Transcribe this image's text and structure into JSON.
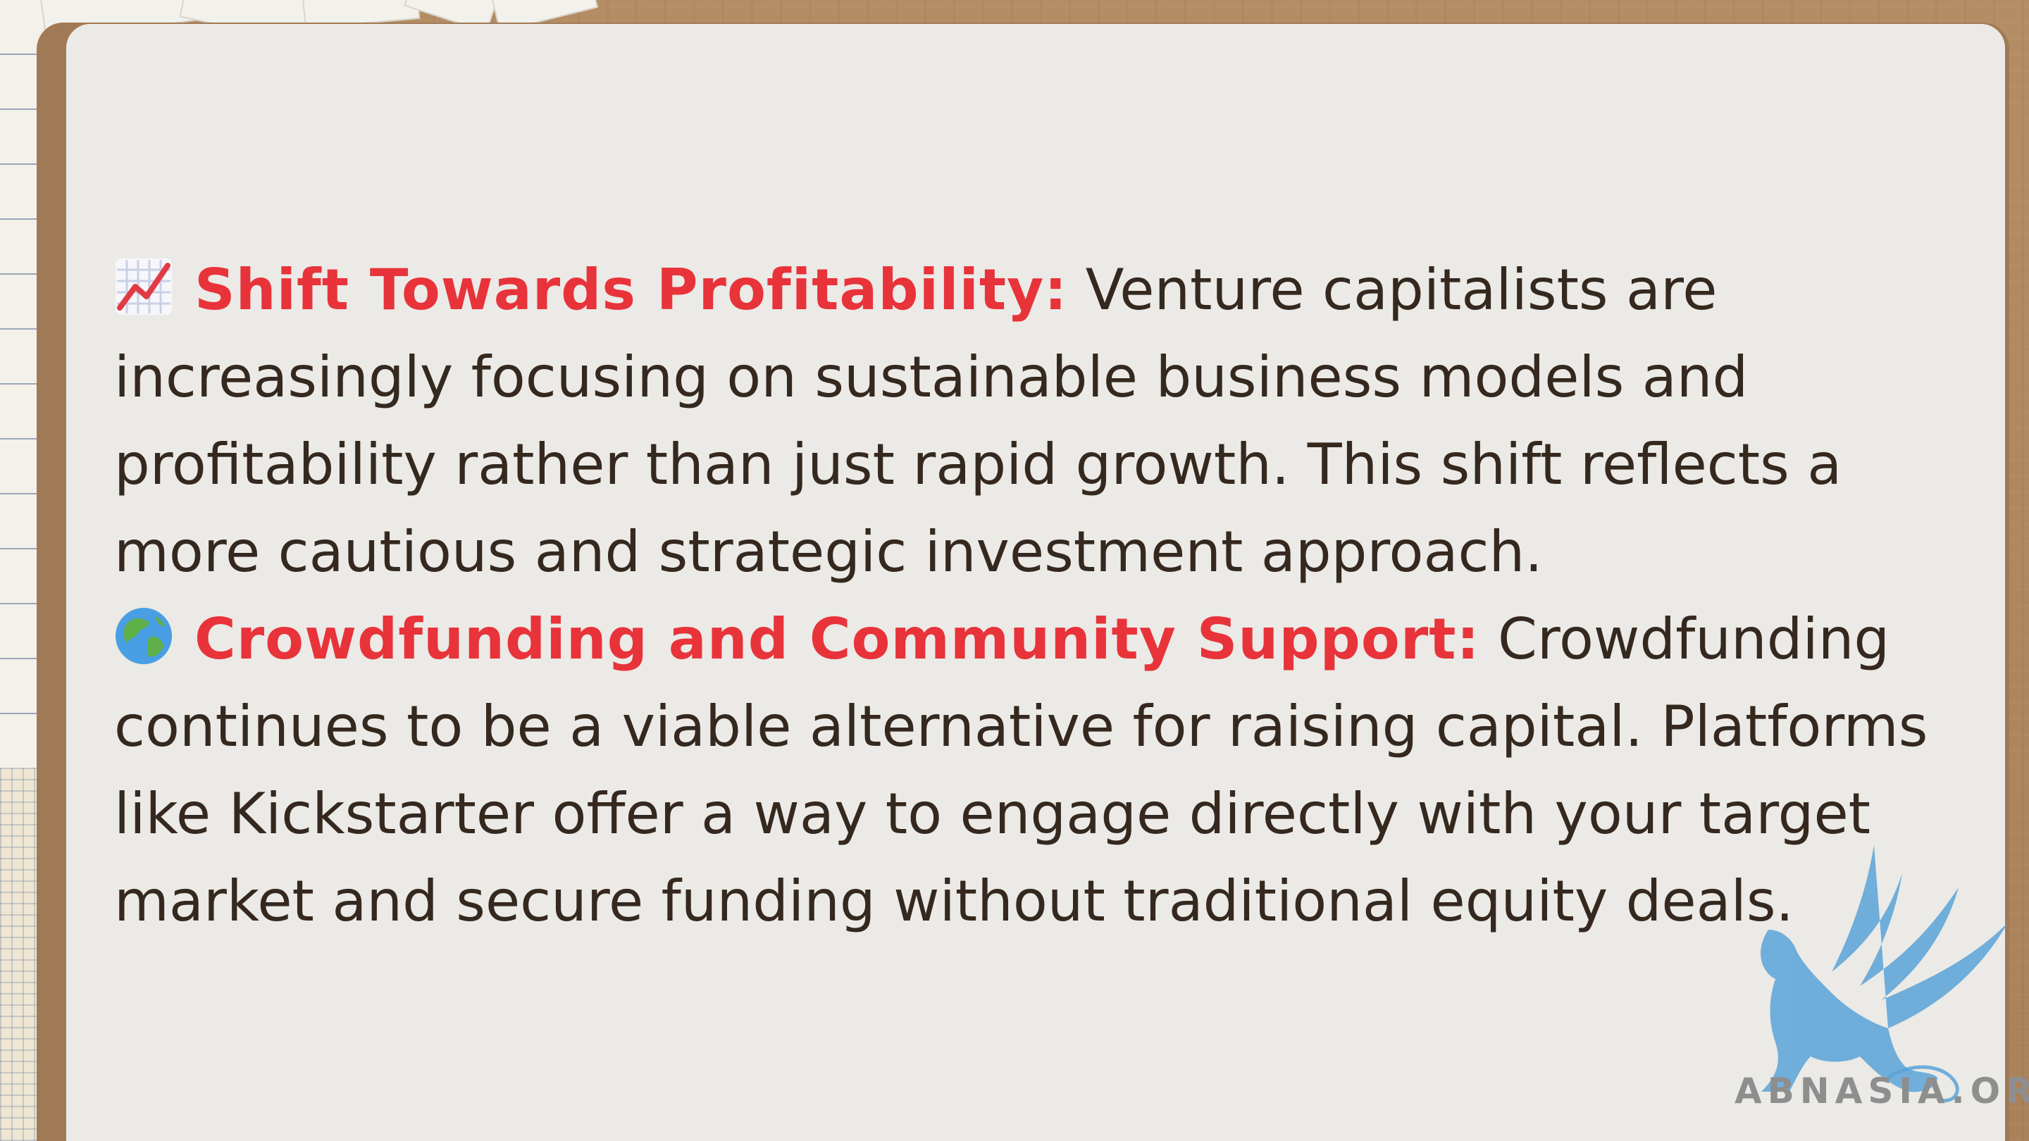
{
  "bullets": [
    {
      "icon": "chart-increasing-icon",
      "heading": "Shift Towards Profitability:",
      "text": "Venture capitalists are increasingly focusing on sustainable business models and profitability rather than just rapid growth. This shift reflects a more cautious and strategic investment approach."
    },
    {
      "icon": "globe-icon",
      "heading": "Crowdfunding and Community Support:",
      "text": "Crowdfunding continues to be a viable alternative for raising capital. Platforms like Kickstarter offer a way to engage directly with your target market and secure funding without traditional equity deals."
    }
  ],
  "watermark": {
    "text": "ABNASIA.ORG"
  },
  "colors": {
    "heading": "#e8333a",
    "body": "#35281f",
    "card": "#ebeae6",
    "frame": "#a07a56",
    "watermark": "#5aa3d8"
  }
}
